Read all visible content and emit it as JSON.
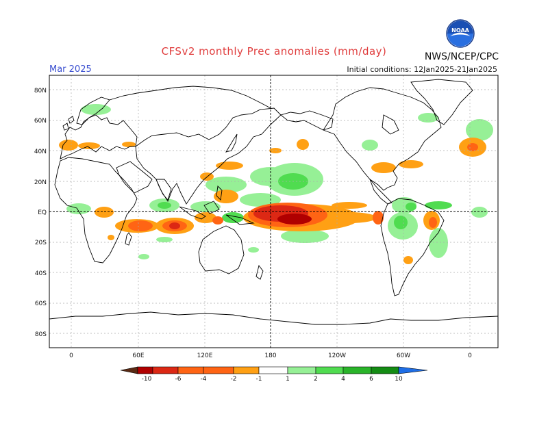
{
  "header": {
    "title": "CFSv2 monthly Prec anomalies (mm/day)",
    "title_color": "#e03c3c",
    "organization": "NWS/NCEP/CPC",
    "month": "Mar 2025",
    "month_color": "#3a4fd0",
    "initial_conditions": "Initial conditions: 12Jan2025-21Jan2025",
    "logo_text": "NOAA"
  },
  "map": {
    "lat_labels": [
      "80N",
      "60N",
      "40N",
      "20N",
      "EQ",
      "20S",
      "40S",
      "60S",
      "80S"
    ],
    "lon_labels": [
      "0",
      "60E",
      "120E",
      "180",
      "120W",
      "60W",
      "0"
    ]
  },
  "colorbar": {
    "labels": [
      "-10",
      "-6",
      "-4",
      "-2",
      "-1",
      "1",
      "2",
      "4",
      "6",
      "10"
    ],
    "colors": [
      "#5a2a14",
      "#b00000",
      "#dc2814",
      "#ff6414",
      "#ffa014",
      "#ffffff",
      "#96f096",
      "#50dc50",
      "#2ab42a",
      "#148c14",
      "#1e6ee6"
    ]
  },
  "palette": {
    "dry_strong": "#b00000",
    "dry_mid": "#dc2814",
    "dry_light": "#ff6414",
    "dry_weak": "#ffa014",
    "wet_weak": "#96f096",
    "wet_mid": "#50dc50"
  }
}
